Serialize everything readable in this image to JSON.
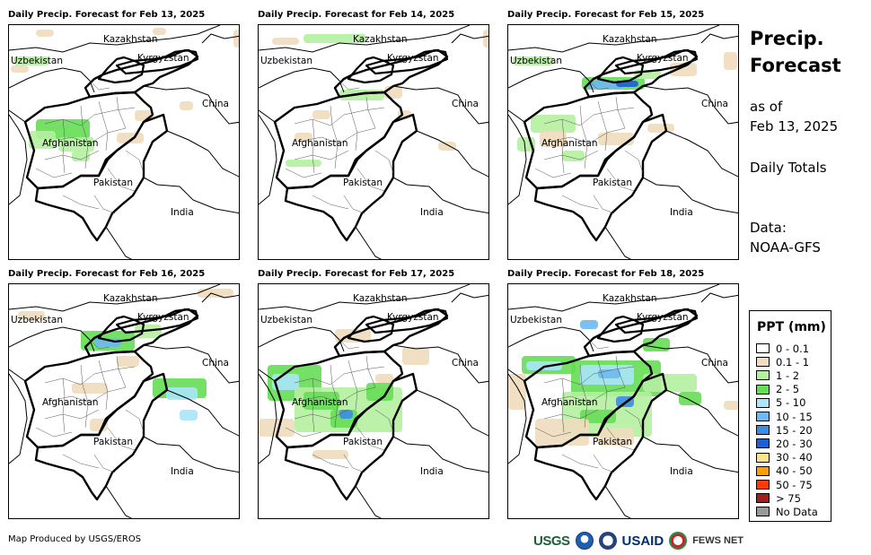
{
  "panels": [
    {
      "title": "Daily Precip. Forecast for Feb 13, 2025",
      "labels": {
        "kazakhstan": "Kazakhstan",
        "uzbekistan": "Uzbekistan",
        "kyrgyzstan": "Kyrgyzstan",
        "china": "China",
        "afghanistan": "Afghanistan",
        "pakistan": "Pakistan",
        "india": "India"
      }
    },
    {
      "title": "Daily Precip. Forecast for Feb 14, 2025",
      "labels": {
        "kazakhstan": "Kazakhstan",
        "uzbekistan": "Uzbekistan",
        "kyrgyzstan": "Kyrgyzstan",
        "china": "China",
        "afghanistan": "Afghanistan",
        "pakistan": "Pakistan",
        "india": "India"
      }
    },
    {
      "title": "Daily Precip. Forecast for Feb 15, 2025",
      "labels": {
        "kazakhstan": "Kazakhstan",
        "uzbekistan": "Uzbekistan",
        "kyrgyzstan": "Kyrgyzstan",
        "china": "China",
        "afghanistan": "Afghanistan",
        "pakistan": "Pakistan",
        "india": "India"
      }
    },
    {
      "title": "Daily Precip. Forecast for Feb 16, 2025",
      "labels": {
        "kazakhstan": "Kazakhstan",
        "uzbekistan": "Uzbekistan",
        "kyrgyzstan": "Kyrgyzstan",
        "china": "China",
        "afghanistan": "Afghanistan",
        "pakistan": "Pakistan",
        "india": "India"
      }
    },
    {
      "title": "Daily Precip. Forecast for Feb 17, 2025",
      "labels": {
        "kazakhstan": "Kazakhstan",
        "uzbekistan": "Uzbekistan",
        "kyrgyzstan": "Kyrgyzstan",
        "china": "China",
        "afghanistan": "Afghanistan",
        "pakistan": "Pakistan",
        "india": "India"
      }
    },
    {
      "title": "Daily Precip. Forecast for Feb 18, 2025",
      "labels": {
        "kazakhstan": "Kazakhstan",
        "uzbekistan": "Uzbekistan",
        "kyrgyzstan": "Kyrgyzstan",
        "china": "China",
        "afghanistan": "Afghanistan",
        "pakistan": "Pakistan",
        "india": "India"
      }
    }
  ],
  "side": {
    "title_line1": "Precip.",
    "title_line2": "Forecast",
    "asof_line1": "as of",
    "asof_line2": "Feb 13, 2025",
    "totals": "Daily Totals",
    "data_line1": "Data:",
    "data_line2": "NOAA-GFS"
  },
  "legend": {
    "title": "PPT (mm)",
    "items": [
      {
        "label": "0 - 0.1",
        "color": "#ffffff"
      },
      {
        "label": "0.1 - 1",
        "color": "#f0dcbe"
      },
      {
        "label": "1 - 2",
        "color": "#b5f0a0"
      },
      {
        "label": "2 - 5",
        "color": "#66dd55"
      },
      {
        "label": "5 - 10",
        "color": "#a8e6f8"
      },
      {
        "label": "10 - 15",
        "color": "#6fb8f0"
      },
      {
        "label": "15 - 20",
        "color": "#3c8ce6"
      },
      {
        "label": "20 - 30",
        "color": "#1e5fd2"
      },
      {
        "label": "30 - 40",
        "color": "#ffe38a"
      },
      {
        "label": "40 - 50",
        "color": "#ffa000"
      },
      {
        "label": "50 - 75",
        "color": "#ff3c00"
      },
      {
        "label": "> 75",
        "color": "#a01e1e"
      },
      {
        "label": "No Data",
        "color": "#999999"
      }
    ]
  },
  "footer": {
    "credit": "Map Produced by USGS/EROS",
    "logo_usgs": "USGS",
    "logo_usaid": "USAID",
    "logo_fews": "FEWS NET"
  }
}
